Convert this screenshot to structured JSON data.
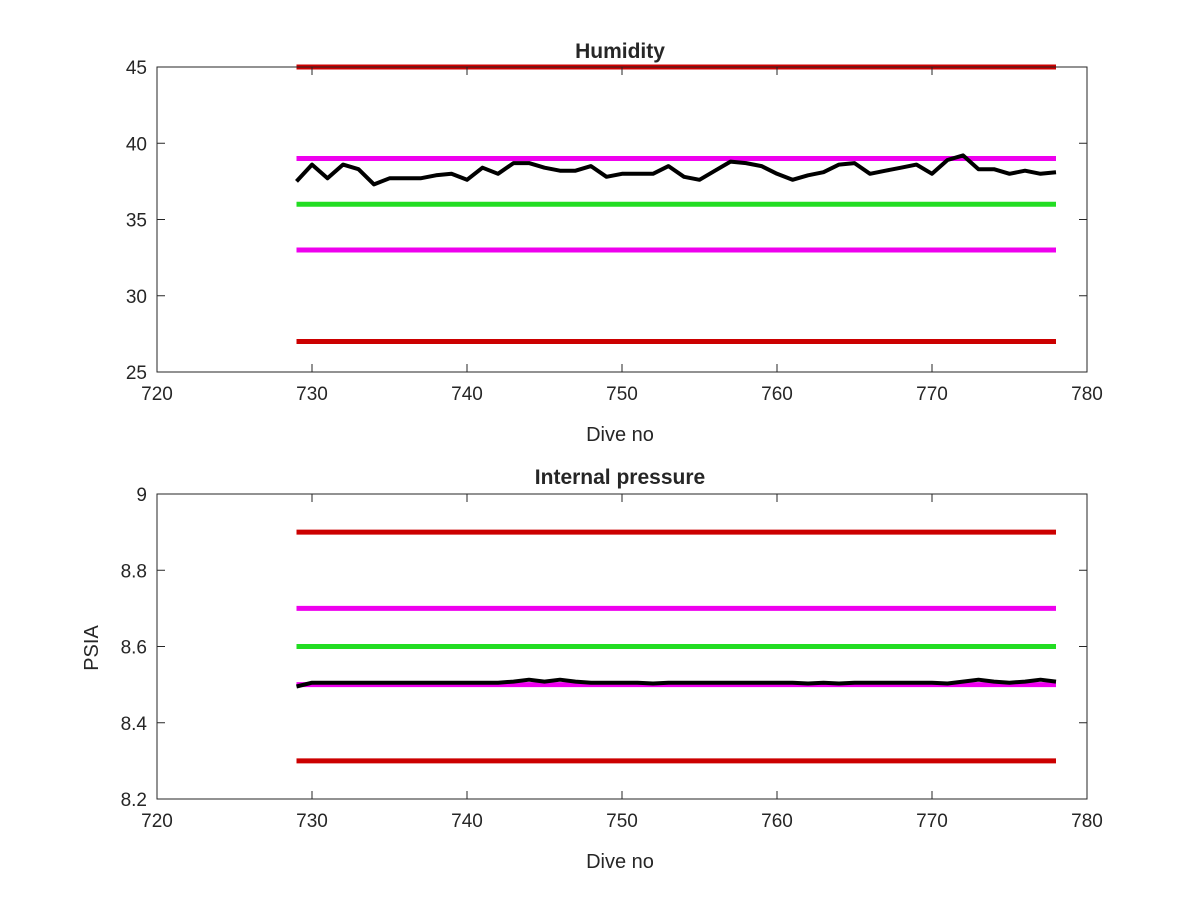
{
  "chart_data": [
    {
      "type": "line",
      "title": "Humidity",
      "xlabel": "Dive no",
      "ylabel": "",
      "xlim": [
        720,
        780
      ],
      "ylim": [
        25,
        45
      ],
      "xticks": [
        720,
        730,
        740,
        750,
        760,
        770,
        780
      ],
      "yticks": [
        25,
        30,
        35,
        40,
        45
      ],
      "ytick_labels": [
        "25",
        "30",
        "35",
        "40",
        "45"
      ],
      "grid": false,
      "reference_lines": [
        {
          "y": 45,
          "x": [
            729,
            778
          ],
          "color": "#cc0000"
        },
        {
          "y": 39,
          "x": [
            729,
            778
          ],
          "color": "#ee00ee"
        },
        {
          "y": 36,
          "x": [
            729,
            778
          ],
          "color": "#22dd22"
        },
        {
          "y": 33,
          "x": [
            729,
            778
          ],
          "color": "#ee00ee"
        },
        {
          "y": 27,
          "x": [
            729,
            778
          ],
          "color": "#cc0000"
        }
      ],
      "series": [
        {
          "color": "#000000",
          "x": [
            729,
            730,
            731,
            732,
            733,
            734,
            735,
            736,
            737,
            738,
            739,
            740,
            741,
            742,
            743,
            744,
            745,
            746,
            747,
            748,
            749,
            750,
            751,
            752,
            753,
            754,
            755,
            756,
            757,
            758,
            759,
            760,
            761,
            762,
            763,
            764,
            765,
            766,
            767,
            768,
            769,
            770,
            771,
            772,
            773,
            774,
            775,
            776,
            777,
            778
          ],
          "y": [
            37.5,
            38.6,
            37.7,
            38.6,
            38.3,
            37.3,
            37.7,
            37.7,
            37.7,
            37.9,
            38.0,
            37.6,
            38.4,
            38.0,
            38.7,
            38.7,
            38.4,
            38.2,
            38.2,
            38.5,
            37.8,
            38.0,
            38.0,
            38.0,
            38.5,
            37.8,
            37.6,
            38.2,
            38.8,
            38.7,
            38.5,
            38.0,
            37.6,
            37.9,
            38.1,
            38.6,
            38.7,
            38.0,
            38.2,
            38.4,
            38.6,
            38.0,
            38.9,
            39.2,
            38.3,
            38.3,
            38.0,
            38.2,
            38.0,
            38.1
          ]
        }
      ]
    },
    {
      "type": "line",
      "title": "Internal pressure",
      "xlabel": "Dive no",
      "ylabel": "PSIA",
      "xlim": [
        720,
        780
      ],
      "ylim": [
        8.2,
        9
      ],
      "xticks": [
        720,
        730,
        740,
        750,
        760,
        770,
        780
      ],
      "yticks": [
        8.2,
        8.4,
        8.6,
        8.8,
        9
      ],
      "ytick_labels": [
        "8.2",
        "8.4",
        "8.6",
        "8.8",
        "9"
      ],
      "grid": false,
      "reference_lines": [
        {
          "y": 8.9,
          "x": [
            729,
            778
          ],
          "color": "#cc0000"
        },
        {
          "y": 8.7,
          "x": [
            729,
            778
          ],
          "color": "#ee00ee"
        },
        {
          "y": 8.6,
          "x": [
            729,
            778
          ],
          "color": "#22dd22"
        },
        {
          "y": 8.5,
          "x": [
            729,
            778
          ],
          "color": "#ee00ee"
        },
        {
          "y": 8.3,
          "x": [
            729,
            778
          ],
          "color": "#cc0000"
        }
      ],
      "series": [
        {
          "color": "#000000",
          "x": [
            729,
            730,
            731,
            732,
            733,
            734,
            735,
            736,
            737,
            738,
            739,
            740,
            741,
            742,
            743,
            744,
            745,
            746,
            747,
            748,
            749,
            750,
            751,
            752,
            753,
            754,
            755,
            756,
            757,
            758,
            759,
            760,
            761,
            762,
            763,
            764,
            765,
            766,
            767,
            768,
            769,
            770,
            771,
            772,
            773,
            774,
            775,
            776,
            777,
            778
          ],
          "y": [
            8.495,
            8.505,
            8.505,
            8.505,
            8.505,
            8.505,
            8.505,
            8.505,
            8.505,
            8.505,
            8.505,
            8.505,
            8.505,
            8.505,
            8.508,
            8.513,
            8.508,
            8.513,
            8.508,
            8.505,
            8.505,
            8.505,
            8.505,
            8.503,
            8.505,
            8.505,
            8.505,
            8.505,
            8.505,
            8.505,
            8.505,
            8.505,
            8.505,
            8.503,
            8.505,
            8.503,
            8.505,
            8.505,
            8.505,
            8.505,
            8.505,
            8.505,
            8.503,
            8.508,
            8.513,
            8.508,
            8.505,
            8.508,
            8.513,
            8.508
          ]
        }
      ]
    }
  ]
}
